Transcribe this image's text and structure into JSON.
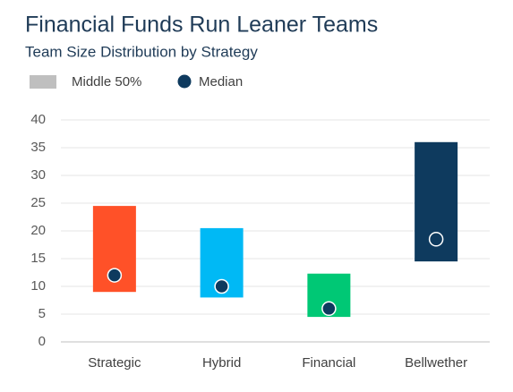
{
  "chart_data": {
    "type": "range",
    "title": "Financial Funds Run Leaner Teams",
    "subtitle": "Team Size Distribution by Strategy",
    "legend": {
      "range": "Middle 50%",
      "median": "Median",
      "range_color": "#bfbfbf",
      "median_color": "#0e3a5e"
    },
    "categories": [
      "Strategic",
      "Hybrid",
      "Financial",
      "Bellwether"
    ],
    "low": [
      9,
      8,
      4.5,
      14.5
    ],
    "high": [
      24.5,
      20.5,
      12.3,
      36
    ],
    "median": [
      12,
      10,
      6,
      18.5
    ],
    "colors": [
      "#ff5128",
      "#00b9f5",
      "#00c875",
      "#0e3a5e"
    ],
    "ylim": [
      0,
      40
    ],
    "yticks": [
      0,
      5,
      10,
      15,
      20,
      25,
      30,
      35,
      40
    ],
    "grid": true
  }
}
